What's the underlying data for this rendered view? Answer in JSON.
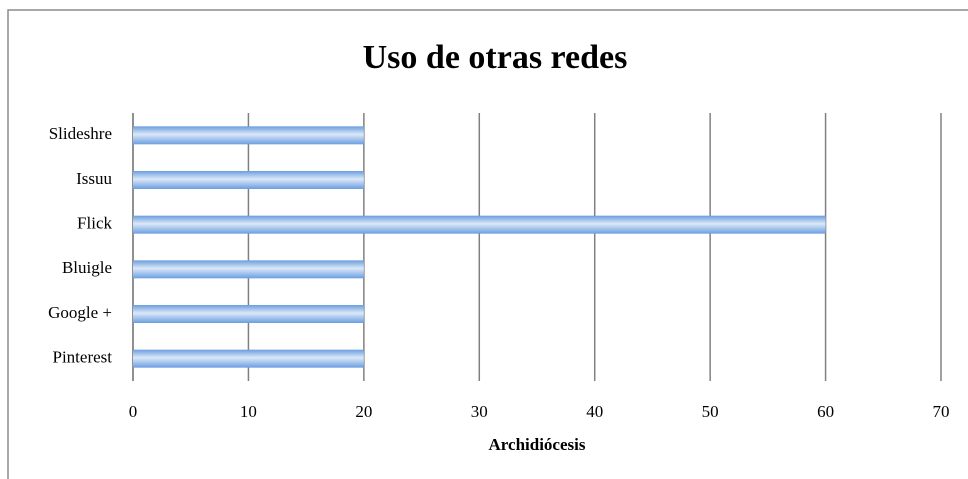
{
  "chart_data": {
    "type": "barh",
    "title": "Uso de otras redes",
    "categories": [
      "Slideshre",
      "Issuu",
      "Flick",
      "Bluigle",
      "Google +",
      "Pinterest"
    ],
    "values": [
      20,
      20,
      60,
      20,
      20,
      20
    ],
    "color": "#6a9ee0",
    "xlabel": "Archidiócesis",
    "xlim": [
      0,
      70
    ],
    "xticks": [
      0,
      10,
      20,
      30,
      40,
      50,
      60,
      70
    ],
    "grid": true
  }
}
